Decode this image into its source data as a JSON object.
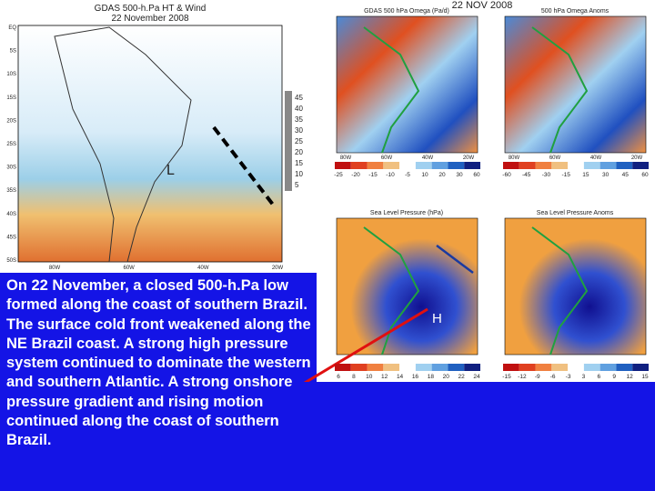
{
  "left_map": {
    "title": "GDAS 500-h.Pa HT & Wind",
    "date": "22 November 2008",
    "lat_labels": [
      "EQ",
      "5S",
      "10S",
      "15S",
      "20S",
      "25S",
      "30S",
      "35S",
      "40S",
      "45S",
      "50S"
    ],
    "lon_labels": [
      "80W",
      "60W",
      "40W",
      "20W"
    ],
    "colorbar": [
      "45",
      "40",
      "35",
      "30",
      "25",
      "20",
      "15",
      "10",
      "5"
    ],
    "low_label": "L"
  },
  "date_stamp": "22 NOV 2008",
  "panels": [
    {
      "title": "GDAS 500 hPa Omega (Pa/d)",
      "lon_labels": [
        "80W",
        "60W",
        "40W",
        "20W"
      ],
      "colorbar": [
        "-25",
        "-20",
        "-15",
        "-10",
        "-5",
        "10",
        "20",
        "30",
        "60"
      ]
    },
    {
      "title": "500 hPa Omega Anoms",
      "lon_labels": [
        "80W",
        "60W",
        "40W",
        "20W"
      ],
      "colorbar": [
        "-60",
        "-45",
        "-30",
        "-15",
        "15",
        "30",
        "45",
        "60"
      ]
    },
    {
      "title": "Sea Level Pressure (hPa)",
      "lon_labels": [],
      "colorbar": [
        "6",
        "8",
        "10",
        "12",
        "14",
        "16",
        "18",
        "20",
        "22",
        "24"
      ],
      "high_label": "H"
    },
    {
      "title": "Sea Level Pressure Anoms",
      "lon_labels": [],
      "colorbar": [
        "-15",
        "-12",
        "-9",
        "-6",
        "-3",
        "3",
        "6",
        "9",
        "12",
        "15"
      ]
    }
  ],
  "caption": "On 22 November, a closed 500-h.Pa low formed along the coast of southern Brazil. The surface cold front weakened along the NE Brazil coast. A strong high pressure system continued to dominate the western and southern Atlantic. A strong onshore pressure gradient and rising motion continued along the coast of southern Brazil."
}
